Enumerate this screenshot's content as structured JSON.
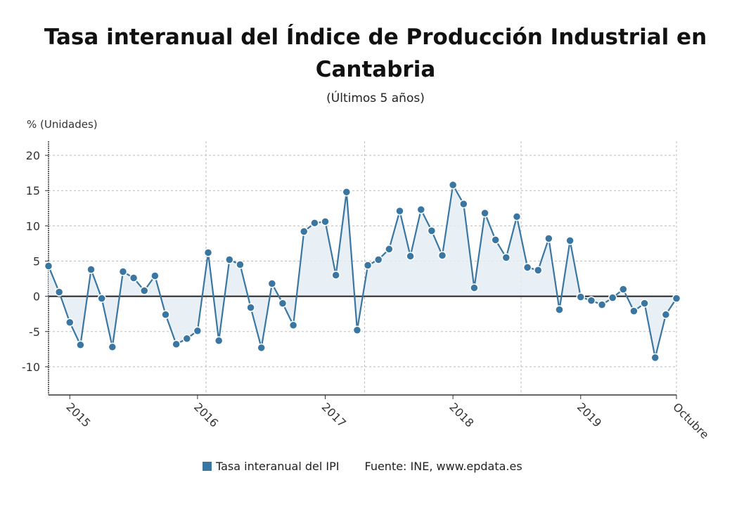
{
  "title": "Tasa interanual del Índice de Producción Industrial en Cantabria",
  "subtitle": "(Últimos 5 años)",
  "legend": {
    "series_label": "Tasa interanual del IPI",
    "source": "Fuente: INE, www.epdata.es"
  },
  "chart_data": {
    "type": "area",
    "title": "Tasa interanual del Índice de Producción Industrial en Cantabria",
    "subtitle": "(Últimos 5 años)",
    "ylabel": "% (Unidades)",
    "xlabel": "",
    "ylim": [
      -14,
      22
    ],
    "yticks": [
      20,
      15,
      10,
      5,
      0,
      -5,
      -10
    ],
    "xticks": [
      {
        "index": 2,
        "label": "2015"
      },
      {
        "index": 14,
        "label": "2016"
      },
      {
        "index": 26,
        "label": "2017"
      },
      {
        "index": 38,
        "label": "2018"
      },
      {
        "index": 50,
        "label": "2019"
      },
      {
        "index": 59,
        "label": "Octubre"
      }
    ],
    "grid": true,
    "legend_position": "bottom",
    "color": "#3a76a2",
    "fill_color": "#e4edf5",
    "series": [
      {
        "name": "Tasa interanual del IPI",
        "values": [
          4.3,
          0.6,
          -3.7,
          -6.9,
          3.8,
          -0.3,
          -7.2,
          3.5,
          2.6,
          0.8,
          2.9,
          -2.6,
          -6.8,
          -6.0,
          -4.9,
          6.2,
          -6.3,
          5.2,
          4.5,
          -1.6,
          -7.3,
          1.8,
          -1.0,
          -4.1,
          9.2,
          10.4,
          10.6,
          3.0,
          14.8,
          -4.8,
          4.4,
          5.2,
          6.7,
          12.1,
          5.7,
          12.3,
          9.3,
          5.8,
          15.8,
          13.1,
          1.2,
          11.8,
          8.0,
          5.5,
          11.3,
          4.1,
          3.7,
          8.2,
          -1.9,
          7.9,
          -0.1,
          -0.6,
          -1.2,
          -0.2,
          1.0,
          -2.1,
          -1.0,
          -8.7,
          -2.6,
          -0.3
        ]
      }
    ]
  }
}
